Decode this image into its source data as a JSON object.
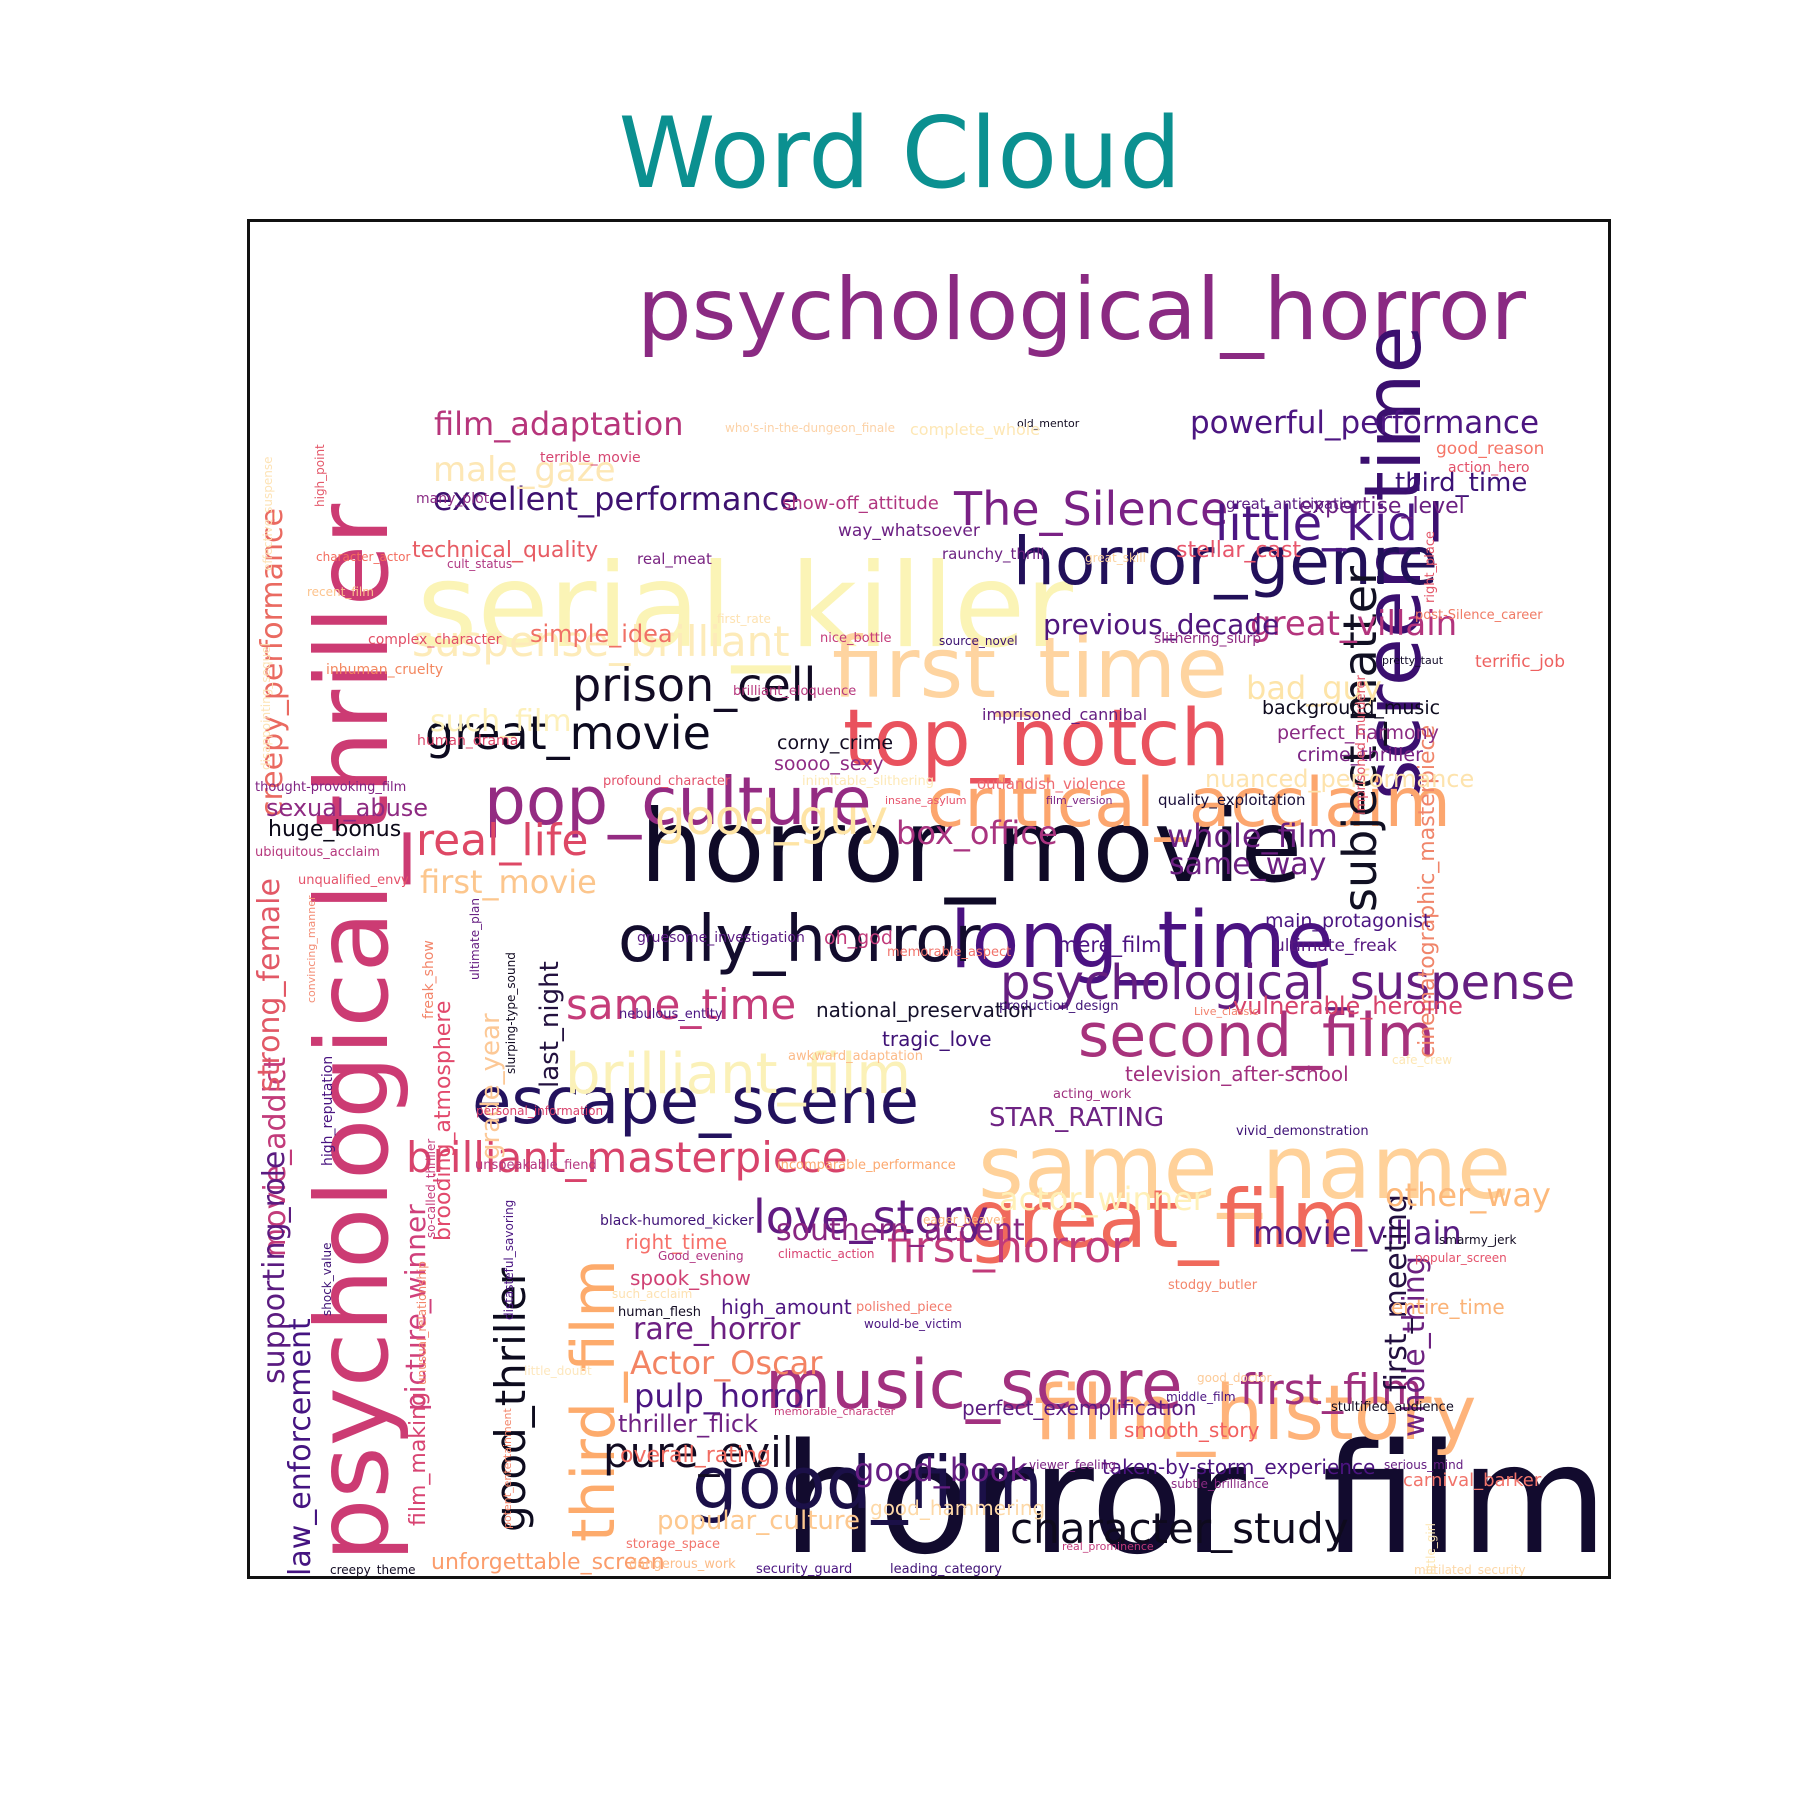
{
  "title": "Word Cloud",
  "words": [
    {
      "text": "horror_film",
      "color": "#120b2e"
    },
    {
      "text": "psychological_thriller",
      "color": "#cc3b73"
    },
    {
      "text": "serial_killer",
      "color": "#fbf4b6"
    },
    {
      "text": "psychological_horror",
      "color": "#8a2a82"
    },
    {
      "text": "horror_movie",
      "color": "#0f0a27"
    },
    {
      "text": "first_time",
      "color": "#fed4a0"
    },
    {
      "text": "top_notch",
      "color": "#e9525e"
    },
    {
      "text": "same_name",
      "color": "#ffd199"
    },
    {
      "text": "screen_time",
      "color": "#3b0f6f"
    },
    {
      "text": "long_time",
      "color": "#4a1281"
    },
    {
      "text": "great_film",
      "color": "#f06a5c"
    },
    {
      "text": "horror_genre",
      "color": "#22105a"
    },
    {
      "text": "critical_acclaim",
      "color": "#fca66e"
    },
    {
      "text": "pop_culture",
      "color": "#942b82"
    },
    {
      "text": "only_horror",
      "color": "#130c2d"
    },
    {
      "text": "escape_scene",
      "color": "#23125e"
    },
    {
      "text": "film_history",
      "color": "#feb37a"
    },
    {
      "text": "good_film",
      "color": "#1b1048"
    },
    {
      "text": "music_score",
      "color": "#a2317f"
    },
    {
      "text": "brilliant_film",
      "color": "#fbf1b8"
    },
    {
      "text": "second_film",
      "color": "#a7327c"
    },
    {
      "text": "third_film",
      "color": "#fdab6c"
    },
    {
      "text": "The_Silence",
      "color": "#7a2185"
    },
    {
      "text": "little_kid",
      "color": "#4b1683"
    },
    {
      "text": "subject_matter",
      "color": "#111023"
    },
    {
      "text": "psychological_suspense",
      "color": "#651e80"
    },
    {
      "text": "prison_cell",
      "color": "#120b24"
    },
    {
      "text": "great_movie",
      "color": "#0c0a1f"
    },
    {
      "text": "suspense_brilliant",
      "color": "#fdebb9"
    },
    {
      "text": "good_guy",
      "color": "#fee4a5"
    },
    {
      "text": "brilliant_masterpiece",
      "color": "#d8436b"
    },
    {
      "text": "real_life",
      "color": "#de4865"
    },
    {
      "text": "same_time",
      "color": "#c53c79"
    },
    {
      "text": "first_horror",
      "color": "#c13a7a"
    },
    {
      "text": "love_story",
      "color": "#621a82"
    },
    {
      "text": "character_study",
      "color": "#0e0a1d"
    },
    {
      "text": "pure_evil",
      "color": "#120b22"
    },
    {
      "text": "good_thriller",
      "color": "#0d0b1e"
    },
    {
      "text": "first_film",
      "color": "#9e2f7d"
    },
    {
      "text": "excellent_performance",
      "color": "#3e1170"
    },
    {
      "text": "film_adaptation",
      "color": "#b7357b"
    },
    {
      "text": "powerful_performance",
      "color": "#4c1581"
    },
    {
      "text": "male_gaze",
      "color": "#fde7b5"
    },
    {
      "text": "movie_addict",
      "color": "#c23b7a"
    },
    {
      "text": "strong_female",
      "color": "#e25866"
    },
    {
      "text": "supporting_role",
      "color": "#5b1b80"
    },
    {
      "text": "law_enforcement",
      "color": "#451481"
    },
    {
      "text": "creepy_performance",
      "color": "#ea6a61"
    },
    {
      "text": "great_villain",
      "color": "#b3347d"
    },
    {
      "text": "movie_villain",
      "color": "#571b81"
    },
    {
      "text": "box_office",
      "color": "#a9337f"
    },
    {
      "text": "whole_film",
      "color": "#6a1f81"
    },
    {
      "text": "same_way",
      "color": "#6c1f81"
    },
    {
      "text": "first_movie",
      "color": "#fcc68d"
    },
    {
      "text": "cinematographic_masterpiece",
      "color": "#f0856a"
    },
    {
      "text": "whole_thing",
      "color": "#6d2180"
    },
    {
      "text": "first_meeting",
      "color": "#220f3f"
    },
    {
      "text": "other_way",
      "color": "#fdb97b"
    },
    {
      "text": "actor_winner",
      "color": "#fff0b8"
    },
    {
      "text": "southern_accent",
      "color": "#8a2681"
    },
    {
      "text": "rare_horror",
      "color": "#6d1f82"
    },
    {
      "text": "Actor_Oscar",
      "color": "#f38363"
    },
    {
      "text": "pulp_horror",
      "color": "#4c1682"
    },
    {
      "text": "good_book",
      "color": "#651d82"
    },
    {
      "text": "popular_culture",
      "color": "#fdc88f"
    },
    {
      "text": "grade_year",
      "color": "#fcc896"
    },
    {
      "text": "last_night",
      "color": "#23113f"
    },
    {
      "text": "brooding_atmosphere",
      "color": "#e2496c"
    },
    {
      "text": "picture_winner",
      "color": "#d0407b"
    },
    {
      "text": "film_making",
      "color": "#d84472"
    },
    {
      "text": "STAR_RATING",
      "color": "#6e2383"
    },
    {
      "text": "previous_decade",
      "color": "#50167d"
    },
    {
      "text": "third_time",
      "color": "#3b1276"
    },
    {
      "text": "expertise_level",
      "color": "#6b1f81"
    },
    {
      "text": "stellar_cast",
      "color": "#e7556b"
    },
    {
      "text": "technical_quality",
      "color": "#e75c64"
    },
    {
      "text": "simple_idea",
      "color": "#f07066"
    },
    {
      "text": "such_film",
      "color": "#fdf0bb"
    },
    {
      "text": "bad_guy",
      "color": "#fde4a8"
    },
    {
      "text": "vulnerable_heroine",
      "color": "#d6426b"
    },
    {
      "text": "entire_time",
      "color": "#fbb378"
    },
    {
      "text": "overall_rating",
      "color": "#f16c62"
    },
    {
      "text": "thriller_flick",
      "color": "#6f2283"
    },
    {
      "text": "unforgettable_screen",
      "color": "#fb9d6c"
    },
    {
      "text": "sexual_abuse",
      "color": "#8e2a82"
    },
    {
      "text": "huge_bonus",
      "color": "#0b0818"
    },
    {
      "text": "nuanced_performance",
      "color": "#fde3ad"
    },
    {
      "text": "television_after-school",
      "color": "#a2317f"
    },
    {
      "text": "right_time",
      "color": "#f6716b"
    },
    {
      "text": "spook_show",
      "color": "#d04174"
    },
    {
      "text": "high_amount",
      "color": "#4f1782"
    },
    {
      "text": "smooth_story",
      "color": "#f1605f"
    },
    {
      "text": "carnival_barker",
      "color": "#f1736a"
    },
    {
      "text": "good_hammering",
      "color": "#fdd8a6"
    },
    {
      "text": "taken-by-storm_experience",
      "color": "#4c1480"
    },
    {
      "text": "perfect_exemplification",
      "color": "#5a1b81"
    },
    {
      "text": "tragic_love",
      "color": "#3f1276"
    },
    {
      "text": "national_preservation",
      "color": "#14102a"
    },
    {
      "text": "background_music",
      "color": "#0d0a1e"
    },
    {
      "text": "perfect_harmony",
      "color": "#8a2a83"
    },
    {
      "text": "crime_thriller",
      "color": "#7a2283"
    },
    {
      "text": "corny_crime",
      "color": "#120b22"
    },
    {
      "text": "soooo_sexy",
      "color": "#8f2b84"
    },
    {
      "text": "oh_god",
      "color": "#c13a7a"
    },
    {
      "text": "mere_film",
      "color": "#4c1481"
    },
    {
      "text": "main_protagonist",
      "color": "#4a1481"
    },
    {
      "text": "ultimate_freak",
      "color": "#571880"
    },
    {
      "text": "terrific_job",
      "color": "#ee6160"
    },
    {
      "text": "imprisoned_cannibal",
      "color": "#651d81"
    },
    {
      "text": "outlandish_violence",
      "color": "#ee6b70"
    },
    {
      "text": "quality_exploitation",
      "color": "#1a0f3a"
    },
    {
      "text": "show-off_attitude",
      "color": "#b13680"
    },
    {
      "text": "way_whatsoever",
      "color": "#6c2083"
    },
    {
      "text": "great_anticipation",
      "color": "#5b1c82"
    },
    {
      "text": "good_reason",
      "color": "#f57567"
    },
    {
      "text": "action_hero",
      "color": "#e3516a"
    },
    {
      "text": "raunchy_thrill",
      "color": "#6d2182"
    },
    {
      "text": "real_meat",
      "color": "#7a2582"
    },
    {
      "text": "many_plot",
      "color": "#8a2b84"
    },
    {
      "text": "terrible_movie",
      "color": "#d64571"
    },
    {
      "text": "cult_status",
      "color": "#b03782"
    },
    {
      "text": "character_actor",
      "color": "#f36c5e"
    },
    {
      "text": "recent_film",
      "color": "#fcc38d"
    },
    {
      "text": "complex_character",
      "color": "#e24e66"
    },
    {
      "text": "inhuman_cruelty",
      "color": "#f3875f"
    },
    {
      "text": "human_drama",
      "color": "#db4569"
    },
    {
      "text": "thought-provoking_film",
      "color": "#7f2282"
    },
    {
      "text": "ubiquitous_acclaim",
      "color": "#b6377d"
    },
    {
      "text": "unqualified_envy",
      "color": "#e4526a"
    },
    {
      "text": "first_rate",
      "color": "#fde2b2"
    },
    {
      "text": "nice_bottle",
      "color": "#c43c7a"
    },
    {
      "text": "source_novel",
      "color": "#3a1170"
    },
    {
      "text": "slithering_slurp",
      "color": "#8f2a82"
    },
    {
      "text": "pretty_taut",
      "color": "#130c29"
    },
    {
      "text": "post-Silence_career",
      "color": "#f07a64"
    },
    {
      "text": "great_skill",
      "color": "#fcd4a0"
    },
    {
      "text": "brilliant_eloquence",
      "color": "#b6377d"
    },
    {
      "text": "profound_character",
      "color": "#e3516a"
    },
    {
      "text": "inimitable_slithering",
      "color": "#fde9b7"
    },
    {
      "text": "insane_asylum",
      "color": "#e6526a"
    },
    {
      "text": "film_version",
      "color": "#7a2282"
    },
    {
      "text": "gruesome_investigation",
      "color": "#5a1b82"
    },
    {
      "text": "memorable_aspect",
      "color": "#f1736b"
    },
    {
      "text": "nebulous_entity",
      "color": "#4a1481"
    },
    {
      "text": "production_design",
      "color": "#3f1276"
    },
    {
      "text": "Live_classic",
      "color": "#f27f6a"
    },
    {
      "text": "awkward_adaptation",
      "color": "#fcbb89"
    },
    {
      "text": "acting_work",
      "color": "#9f317f"
    },
    {
      "text": "personal_information",
      "color": "#d8416c"
    },
    {
      "text": "vivid_demonstration",
      "color": "#3e1276"
    },
    {
      "text": "unspeakable_fiend",
      "color": "#b53680"
    },
    {
      "text": "incomparable_performance",
      "color": "#fca86f"
    },
    {
      "text": "black-humored_kicker",
      "color": "#3f1276"
    },
    {
      "text": "eager_beaver",
      "color": "#fbb47e"
    },
    {
      "text": "Good_evening",
      "color": "#b13682"
    },
    {
      "text": "climactic_action",
      "color": "#d84472"
    },
    {
      "text": "such_acclaim",
      "color": "#fde1b1"
    },
    {
      "text": "human_flesh",
      "color": "#120b22"
    },
    {
      "text": "polished_piece",
      "color": "#f27a6b"
    },
    {
      "text": "would-be_victim",
      "color": "#4a1480"
    },
    {
      "text": "stodgy_butler",
      "color": "#f3856a"
    },
    {
      "text": "smarmy_jerk",
      "color": "#120b22"
    },
    {
      "text": "popular_screen",
      "color": "#e4516a"
    },
    {
      "text": "little_doubt",
      "color": "#fde7bd"
    },
    {
      "text": "good_doctor",
      "color": "#fcca97"
    },
    {
      "text": "middle_film",
      "color": "#4a1481"
    },
    {
      "text": "stultified_audience",
      "color": "#120b22"
    },
    {
      "text": "memorable_character",
      "color": "#c63c7a"
    },
    {
      "text": "viewer_feeling",
      "color": "#7a2282"
    },
    {
      "text": "serious_mind",
      "color": "#651d81"
    },
    {
      "text": "subtle_brilliance",
      "color": "#8a2a83"
    },
    {
      "text": "storage_space",
      "color": "#f2756d"
    },
    {
      "text": "dangerous_work",
      "color": "#fcbd89"
    },
    {
      "text": "real_prominence",
      "color": "#c13a7a"
    },
    {
      "text": "security_guard",
      "color": "#4a1481"
    },
    {
      "text": "leading_category",
      "color": "#3f1276"
    },
    {
      "text": "mutilated_security",
      "color": "#fdd7a6"
    },
    {
      "text": "creepy_theme",
      "color": "#120b22"
    },
    {
      "text": "old_mentor",
      "color": "#120b22"
    },
    {
      "text": "complete_whole",
      "color": "#fde7b5"
    },
    {
      "text": "who's-in-the-dungeon_finale",
      "color": "#fcd2a7"
    },
    {
      "text": "effective_suspense",
      "color": "#fde3b6"
    },
    {
      "text": "high_point",
      "color": "#e4586a"
    },
    {
      "text": "disappointing_sequel",
      "color": "#fde4b6"
    },
    {
      "text": "convincing_manner",
      "color": "#f38c74"
    },
    {
      "text": "high_reputation",
      "color": "#4a1481"
    },
    {
      "text": "shock_value",
      "color": "#3f1276"
    },
    {
      "text": "freak_show",
      "color": "#f3856a"
    },
    {
      "text": "ultimate_plan",
      "color": "#651d81"
    },
    {
      "text": "slurping-type_sound",
      "color": "#120b22"
    },
    {
      "text": "so-called_thriller",
      "color": "#c63c7a"
    },
    {
      "text": "unusual_relationship",
      "color": "#f3856a"
    },
    {
      "text": "distasteful_savoring",
      "color": "#4a1481"
    },
    {
      "text": "potent_entertainment",
      "color": "#f3856a"
    },
    {
      "text": "imprisoned_murderer",
      "color": "#e4586a"
    },
    {
      "text": "right_place",
      "color": "#e4586a"
    },
    {
      "text": "little_girl",
      "color": "#fde7b5"
    },
    {
      "text": "cafe_crew",
      "color": "#fde7b5"
    }
  ]
}
